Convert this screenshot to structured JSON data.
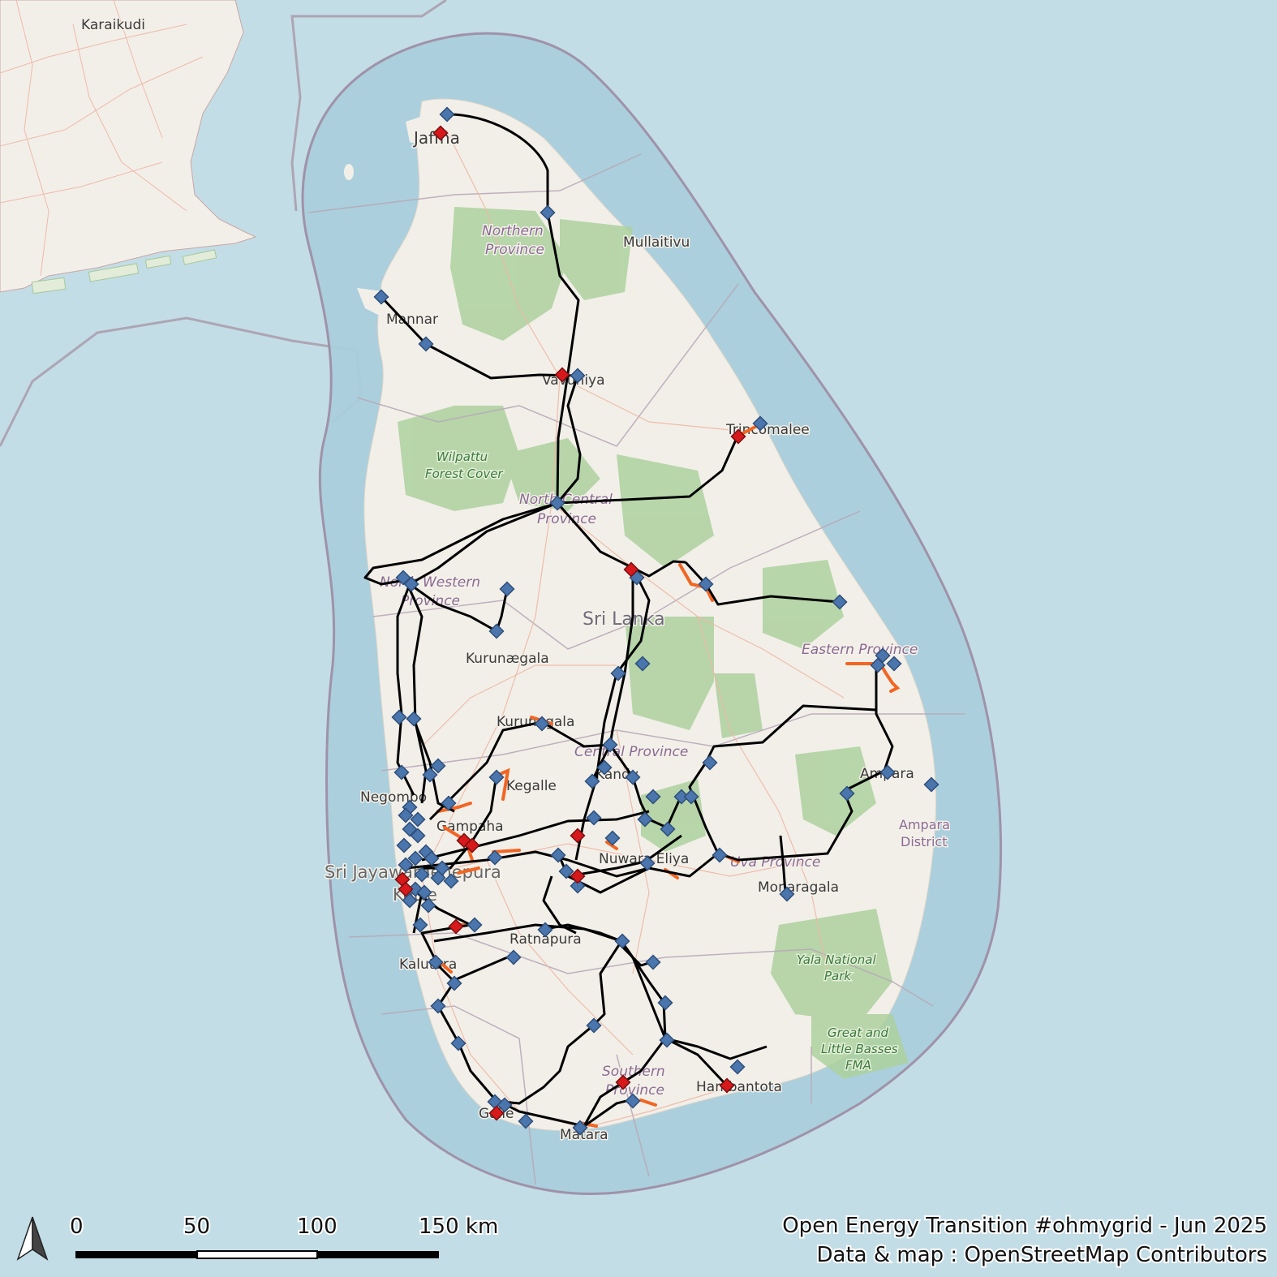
{
  "places": {
    "karaikudi": "Karaikudi",
    "jaffna": "Jaffna",
    "mullaitivu": "Mullaitivu",
    "mannar": "Mannar",
    "vavuniya": "Vavuniya",
    "trincomalee": "Trincomalee",
    "kurunegala_a": "Kurunægala",
    "kurunegala_b": "Kurunegala",
    "kandy": "Kandy",
    "kegalle": "Kegalle",
    "negombo": "Negombo",
    "gampaha": "Gampaha",
    "colombo_a": "Sri Jayawardenepura",
    "colombo_b": "Kotte",
    "nuwara_eliya": "Nuwara Eliya",
    "ratnapura": "Ratnapura",
    "kalutara": "Kalutara",
    "galle": "Galle",
    "matara": "Matara",
    "hambantota": "Hambantota",
    "monaragala": "Monaragala",
    "ampara": "Ampara",
    "sri_lanka": "Sri Lanka"
  },
  "provinces": {
    "northern_1": "Northern",
    "northern_2": "Province",
    "north_central_1": "North Central",
    "north_central_2": "Province",
    "north_western_1": "North Western",
    "north_western_2": "Province",
    "eastern": "Eastern Province",
    "central": "Central Province",
    "uva": "Uva Province",
    "southern_1": "Southern",
    "southern_2": "Province",
    "ampara_district_1": "Ampara",
    "ampara_district_2": "District"
  },
  "parks": {
    "wilpattu_1": "Wilpattu",
    "wilpattu_2": "Forest Cover",
    "yala_1": "Yala National",
    "yala_2": "Park",
    "basses_1": "Great and",
    "basses_2": "Little Basses",
    "basses_3": "FMA"
  },
  "scale_bar": {
    "tick_0": "0",
    "tick_50": "50",
    "tick_100": "100",
    "tick_150": "150 km"
  },
  "credits": {
    "line1": "Open Energy Transition #ohmygrid - Jun 2025",
    "line2": "Data & map : OpenStreetMap Contributors"
  },
  "colors": {
    "sea": "#c3dde6",
    "land": "#f2efe9",
    "forest": "#add19e",
    "transmission_line": "#000000",
    "planned_line": "#f26522",
    "substation": "#4a76ad",
    "power_plant": "#d7191c"
  }
}
